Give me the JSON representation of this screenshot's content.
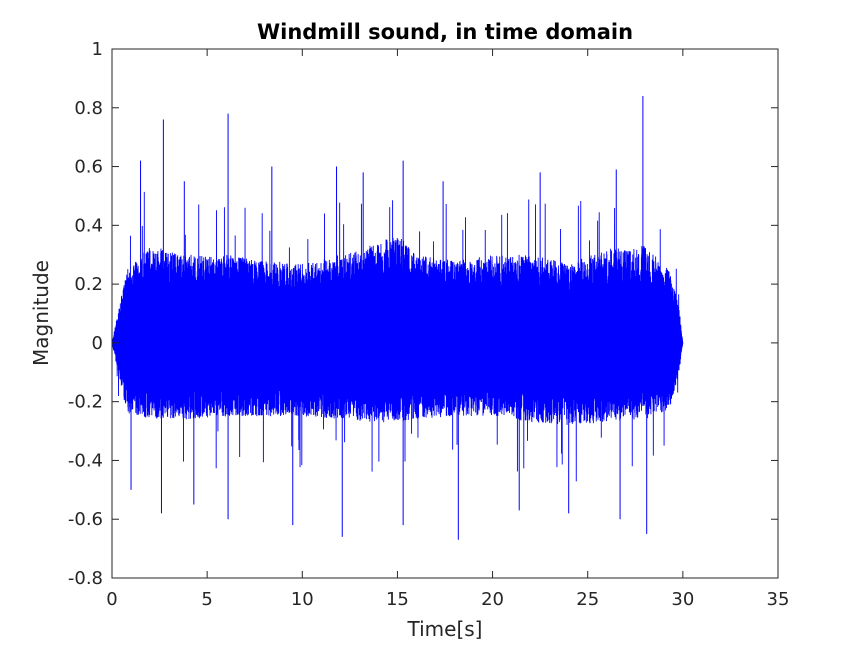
{
  "chart_data": {
    "type": "line",
    "title": "Windmill sound, in time domain",
    "xlabel": "Time[s]",
    "ylabel": "Magnitude",
    "xlim": [
      0,
      35
    ],
    "ylim": [
      -0.8,
      1
    ],
    "xticks": [
      "0",
      "5",
      "10",
      "15",
      "20",
      "25",
      "30",
      "35"
    ],
    "yticks": [
      "-0.8",
      "-0.6",
      "-0.4",
      "-0.2",
      "0",
      "0.2",
      "0.4",
      "0.6",
      "0.8",
      "1"
    ],
    "grid": false,
    "legend": false,
    "signal_duration": 30,
    "series": [
      {
        "color": "#0000ff",
        "envelope": {
          "t": [
            0,
            0.3,
            0.8,
            2,
            4,
            6,
            8,
            10,
            12,
            14,
            15,
            16,
            18,
            20,
            22,
            24,
            26,
            28,
            29.3,
            29.8,
            30
          ],
          "max": [
            0.0,
            0.1,
            0.25,
            0.33,
            0.3,
            0.3,
            0.28,
            0.27,
            0.3,
            0.34,
            0.37,
            0.3,
            0.28,
            0.3,
            0.3,
            0.27,
            0.32,
            0.33,
            0.25,
            0.12,
            0.0
          ],
          "min": [
            0.0,
            -0.1,
            -0.24,
            -0.26,
            -0.26,
            -0.25,
            -0.25,
            -0.25,
            -0.26,
            -0.27,
            -0.27,
            -0.26,
            -0.25,
            -0.25,
            -0.27,
            -0.28,
            -0.27,
            -0.26,
            -0.23,
            -0.1,
            0.0
          ]
        },
        "peaks": [
          {
            "t": 2.7,
            "y": 0.76
          },
          {
            "t": 6.1,
            "y": 0.78
          },
          {
            "t": 15.3,
            "y": 0.62
          },
          {
            "t": 27.9,
            "y": 0.84
          },
          {
            "t": 1.5,
            "y": 0.62
          },
          {
            "t": 8.4,
            "y": 0.6
          },
          {
            "t": 11.8,
            "y": 0.6
          },
          {
            "t": 17.4,
            "y": 0.55
          },
          {
            "t": 22.5,
            "y": 0.58
          },
          {
            "t": 26.5,
            "y": 0.59
          },
          {
            "t": 3.8,
            "y": 0.55
          },
          {
            "t": 13.2,
            "y": 0.58
          },
          {
            "t": 2.6,
            "y": -0.58
          },
          {
            "t": 6.1,
            "y": -0.6
          },
          {
            "t": 9.5,
            "y": -0.62
          },
          {
            "t": 12.1,
            "y": -0.66
          },
          {
            "t": 15.3,
            "y": -0.62
          },
          {
            "t": 18.2,
            "y": -0.67
          },
          {
            "t": 21.4,
            "y": -0.57
          },
          {
            "t": 24.0,
            "y": -0.58
          },
          {
            "t": 26.7,
            "y": -0.6
          },
          {
            "t": 28.1,
            "y": -0.65
          },
          {
            "t": 1.0,
            "y": -0.5
          },
          {
            "t": 4.3,
            "y": -0.55
          }
        ]
      }
    ]
  }
}
